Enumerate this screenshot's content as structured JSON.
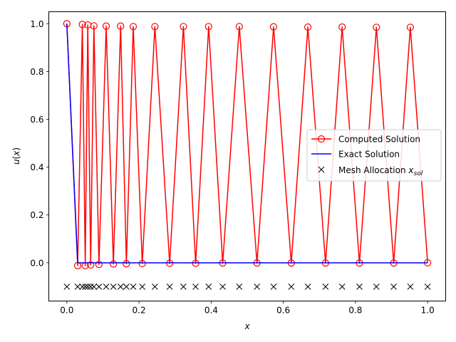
{
  "chart_data": {
    "type": "line",
    "xlabel_math": "x",
    "ylabel_func": "u",
    "ylabel_arg": "x",
    "xlim": [
      -0.05,
      1.05
    ],
    "ylim": [
      -0.16,
      1.05
    ],
    "xticks": [
      "0.0",
      "0.2",
      "0.4",
      "0.6",
      "0.8",
      "1.0"
    ],
    "xtick_values": [
      0.0,
      0.2,
      0.4,
      0.6,
      0.8,
      1.0
    ],
    "yticks": [
      "0.0",
      "0.2",
      "0.4",
      "0.6",
      "0.8",
      "1.0"
    ],
    "ytick_values": [
      0.0,
      0.2,
      0.4,
      0.6,
      0.8,
      1.0
    ],
    "legend_position": "center-right",
    "series": [
      {
        "name": "Computed Solution",
        "color": "#ff0000",
        "marker": "open-circle",
        "x": [
          0.0,
          0.03,
          0.043,
          0.051,
          0.058,
          0.066,
          0.075,
          0.089,
          0.109,
          0.129,
          0.149,
          0.165,
          0.184,
          0.209,
          0.244,
          0.285,
          0.323,
          0.357,
          0.393,
          0.432,
          0.478,
          0.527,
          0.573,
          0.622,
          0.668,
          0.717,
          0.763,
          0.811,
          0.858,
          0.906,
          0.952,
          1.0
        ],
        "y": [
          1.0,
          -0.012,
          0.997,
          -0.012,
          0.995,
          -0.009,
          0.991,
          -0.007,
          0.99,
          -0.005,
          0.99,
          -0.004,
          0.988,
          -0.003,
          0.988,
          -0.002,
          0.988,
          -0.002,
          0.988,
          -0.001,
          0.988,
          -0.001,
          0.987,
          -0.001,
          0.986,
          -0.001,
          0.986,
          -0.001,
          0.985,
          -0.001,
          0.985,
          0.0
        ]
      },
      {
        "name": "Exact Solution",
        "color": "#0000ff",
        "marker": "none",
        "x": [
          0.0,
          0.03,
          1.0
        ],
        "y": [
          1.0,
          0.0,
          0.0
        ]
      }
    ],
    "mesh": {
      "name_prefix": "Mesh Allocation ",
      "name_var": "x",
      "name_sub": "sol",
      "color": "#000000",
      "marker": "x",
      "y": -0.1,
      "x": [
        0.0,
        0.03,
        0.043,
        0.051,
        0.058,
        0.066,
        0.075,
        0.089,
        0.109,
        0.129,
        0.149,
        0.165,
        0.184,
        0.209,
        0.244,
        0.285,
        0.323,
        0.357,
        0.393,
        0.432,
        0.478,
        0.527,
        0.573,
        0.622,
        0.668,
        0.717,
        0.763,
        0.811,
        0.858,
        0.906,
        0.952,
        1.0
      ]
    }
  }
}
